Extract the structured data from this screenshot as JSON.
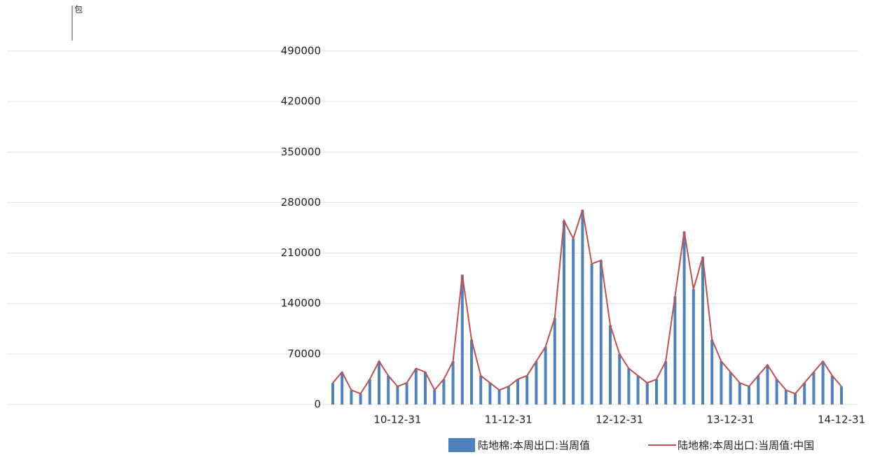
{
  "chart_data": {
    "type": "bar_line",
    "unit": "包",
    "categories": [
      null,
      null,
      null,
      null,
      null,
      null,
      null,
      "10-12-31",
      null,
      null,
      null,
      null,
      null,
      null,
      null,
      null,
      null,
      null,
      null,
      "11-12-31",
      null,
      null,
      null,
      null,
      null,
      null,
      null,
      null,
      null,
      null,
      null,
      "12-12-31",
      null,
      null,
      null,
      null,
      null,
      null,
      null,
      null,
      null,
      null,
      null,
      "13-12-31",
      null,
      null,
      null,
      null,
      null,
      null,
      null,
      null,
      null,
      null,
      null,
      "14-12-31"
    ],
    "series": [
      {
        "name": "陆地棉:本周出口:当周值",
        "color": "#4f81bd",
        "kind": "bar",
        "values": [
          30000,
          45000,
          20000,
          15000,
          35000,
          60000,
          40000,
          25000,
          30000,
          50000,
          45000,
          20000,
          35000,
          60000,
          180000,
          90000,
          40000,
          30000,
          20000,
          25000,
          35000,
          40000,
          60000,
          80000,
          120000,
          255000,
          230000,
          270000,
          195000,
          200000,
          110000,
          70000,
          50000,
          40000,
          30000,
          35000,
          60000,
          150000,
          240000,
          160000,
          205000,
          90000,
          60000,
          45000,
          30000,
          25000,
          40000,
          55000,
          35000,
          20000,
          15000,
          30000,
          45000,
          60000,
          40000,
          25000
        ]
      },
      {
        "name": "陆地棉:本周出口:当周值:中国",
        "color": "#c0504d",
        "kind": "line",
        "values": [
          30000,
          45000,
          20000,
          15000,
          35000,
          60000,
          40000,
          25000,
          30000,
          50000,
          45000,
          20000,
          35000,
          60000,
          180000,
          90000,
          40000,
          30000,
          20000,
          25000,
          35000,
          40000,
          60000,
          80000,
          120000,
          255000,
          230000,
          270000,
          195000,
          200000,
          110000,
          70000,
          50000,
          40000,
          30000,
          35000,
          60000,
          150000,
          240000,
          160000,
          205000,
          90000,
          60000,
          45000,
          30000,
          25000,
          40000,
          55000,
          35000,
          20000,
          15000,
          30000,
          45000,
          60000,
          40000,
          25000
        ]
      }
    ],
    "ylim": [
      0,
      490000
    ],
    "yticks": [
      0,
      70000,
      140000,
      210000,
      280000,
      350000,
      420000,
      490000
    ],
    "grid": true
  }
}
